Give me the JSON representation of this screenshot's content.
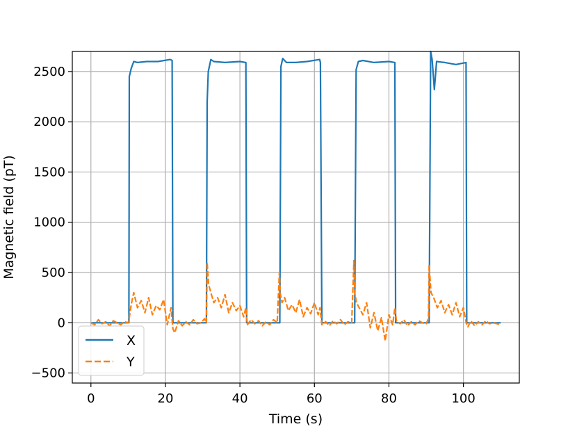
{
  "chart_data": {
    "type": "line",
    "title": "",
    "xlabel": "Time (s)",
    "ylabel": "Magnetic field (pT)",
    "xlim": [
      -5,
      115
    ],
    "ylim": [
      -600,
      2700
    ],
    "grid": true,
    "legend_position": "bottom-left",
    "xticks": [
      0,
      20,
      40,
      60,
      80,
      100
    ],
    "xtick_labels": [
      "0",
      "20",
      "40",
      "60",
      "80",
      "100"
    ],
    "yticks": [
      -500,
      0,
      500,
      1000,
      1500,
      2000,
      2500
    ],
    "ytick_labels": [
      "−500",
      "0",
      "500",
      "1000",
      "1500",
      "2000",
      "2500"
    ],
    "series": [
      {
        "name": "X",
        "color": "#1f77b4",
        "style": "solid",
        "x": [
          0,
          10.2,
          10.3,
          10.8,
          11.5,
          12.5,
          15,
          18,
          21.3,
          21.8,
          22.0,
          22.3,
          25,
          28,
          31,
          31.2,
          31.5,
          32.2,
          33,
          36,
          40,
          41.6,
          41.8,
          42,
          45,
          50,
          50.7,
          51,
          51.5,
          52.5,
          55,
          58,
          61.4,
          61.6,
          62,
          65,
          70,
          70.8,
          71.2,
          71.8,
          73,
          76,
          80,
          81.6,
          81.8,
          82,
          85,
          90,
          90.8,
          91.2,
          91.6,
          92.2,
          92.8,
          95,
          98,
          100.7,
          100.9,
          101.1,
          103,
          106,
          110
        ],
        "y": [
          0,
          0,
          2450,
          2530,
          2600,
          2590,
          2600,
          2600,
          2620,
          2610,
          0,
          0,
          0,
          0,
          0,
          2200,
          2500,
          2620,
          2600,
          2590,
          2600,
          2590,
          0,
          0,
          0,
          0,
          0,
          2550,
          2630,
          2590,
          2590,
          2600,
          2620,
          2590,
          0,
          0,
          0,
          0,
          2520,
          2600,
          2610,
          2590,
          2600,
          2590,
          0,
          0,
          0,
          0,
          0,
          2700,
          2620,
          2320,
          2600,
          2590,
          2570,
          2590,
          0,
          0,
          0,
          0,
          0
        ]
      },
      {
        "name": "Y",
        "color": "#ff7f0e",
        "style": "dashed",
        "x": [
          0,
          1,
          2,
          3,
          4,
          5,
          6,
          7,
          8,
          9,
          10,
          10.3,
          10.8,
          11.5,
          12.5,
          13.5,
          14.5,
          15.5,
          16.5,
          17.5,
          18.5,
          19.5,
          20.5,
          21.5,
          22,
          22.5,
          23.5,
          24.5,
          25.5,
          26.5,
          27.5,
          28.5,
          29.5,
          30.5,
          31,
          31.2,
          31.6,
          32.2,
          33,
          34,
          35,
          36,
          37,
          38,
          39,
          40,
          41,
          41.6,
          42,
          43,
          44,
          45,
          46,
          47,
          48,
          49,
          50,
          50.6,
          50.8,
          51.3,
          52,
          53,
          54,
          55,
          56,
          57,
          58,
          59,
          60,
          61,
          61.5,
          62,
          63,
          64,
          65,
          66,
          67,
          68,
          69,
          70,
          70.6,
          70.8,
          71.3,
          72,
          73,
          74,
          75,
          76,
          77,
          78,
          79,
          80,
          81,
          81.6,
          82,
          83,
          84,
          85,
          86,
          87,
          88,
          89,
          90,
          90.6,
          90.8,
          91.3,
          92,
          93,
          94,
          95,
          96,
          97,
          98,
          99,
          100,
          100.8,
          101.2,
          102,
          103,
          104,
          105,
          106,
          107,
          108,
          109,
          110
        ],
        "y": [
          0,
          -20,
          30,
          -10,
          10,
          -30,
          20,
          0,
          -20,
          10,
          0,
          50,
          180,
          300,
          150,
          220,
          100,
          250,
          80,
          170,
          130,
          230,
          -20,
          150,
          -60,
          -100,
          20,
          -30,
          10,
          -20,
          30,
          -10,
          0,
          40,
          0,
          600,
          380,
          300,
          200,
          250,
          150,
          280,
          100,
          200,
          120,
          170,
          60,
          150,
          -20,
          30,
          -10,
          20,
          -30,
          10,
          -20,
          30,
          0,
          500,
          300,
          200,
          250,
          120,
          180,
          100,
          230,
          60,
          150,
          90,
          200,
          80,
          150,
          -20,
          10,
          -30,
          20,
          -10,
          30,
          -20,
          10,
          0,
          620,
          300,
          200,
          150,
          80,
          200,
          -50,
          100,
          -80,
          50,
          -180,
          80,
          -20,
          150,
          20,
          -10,
          30,
          -30,
          10,
          -20,
          20,
          0,
          -10,
          40,
          570,
          300,
          250,
          150,
          220,
          100,
          180,
          80,
          200,
          60,
          150,
          -10,
          -40,
          20,
          -30,
          10,
          -20,
          20,
          -10,
          0,
          -10,
          -20
        ]
      }
    ]
  }
}
